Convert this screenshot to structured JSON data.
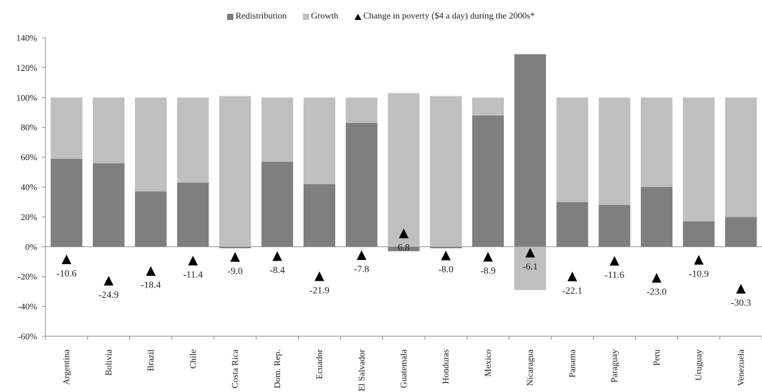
{
  "chart_data": {
    "type": "bar",
    "stacked": true,
    "categories": [
      "Argentina",
      "Bolivia",
      "Brazil",
      "Chile",
      "Costa Rica",
      "Dom. Rep.",
      "Ecuador",
      "El Salvador",
      "Guatemala",
      "Honduras",
      "Mexico",
      "Nicaragua",
      "Panama",
      "Paraguay",
      "Peru",
      "Uruguay",
      "Venezuela"
    ],
    "series": [
      {
        "name": "Redistribution",
        "color": "#7f7f7f",
        "values": [
          59,
          56,
          37,
          43,
          -1,
          57,
          42,
          83,
          -3,
          -1,
          88,
          129,
          30,
          28,
          40,
          17,
          20
        ]
      },
      {
        "name": "Growth",
        "color": "#bfbfbf",
        "values": [
          41,
          44,
          63,
          57,
          101,
          43,
          58,
          17,
          103,
          101,
          12,
          -29,
          70,
          72,
          60,
          83,
          80
        ]
      }
    ],
    "markers": {
      "name": "Change in poverty ($4 a day) during the 2000s*",
      "shape": "triangle",
      "color": "#000000",
      "values": [
        -10.6,
        -24.9,
        -18.4,
        -11.4,
        -9.0,
        -8.4,
        -21.9,
        -7.8,
        6.8,
        -8.0,
        -8.9,
        -6.1,
        -22.1,
        -11.6,
        -23.0,
        -10.9,
        -30.3
      ],
      "labels": [
        "-10.6",
        "-24.9",
        "-18.4",
        "-11.4",
        "-9.0",
        "-8.4",
        "-21.9",
        "-7.8",
        "6.8",
        "-8.0",
        "-8.9",
        "-6.1",
        "-22.1",
        "-11.6",
        "-23.0",
        "-10.9",
        "-30.3"
      ]
    },
    "y_axis": {
      "min": -60,
      "max": 140,
      "step": 20,
      "tick_labels": [
        "-60%",
        "-40%",
        "-20%",
        "0%",
        "20%",
        "40%",
        "60%",
        "80%",
        "100%",
        "120%",
        "140%"
      ]
    },
    "legend_position": "top-center",
    "grid": false
  }
}
